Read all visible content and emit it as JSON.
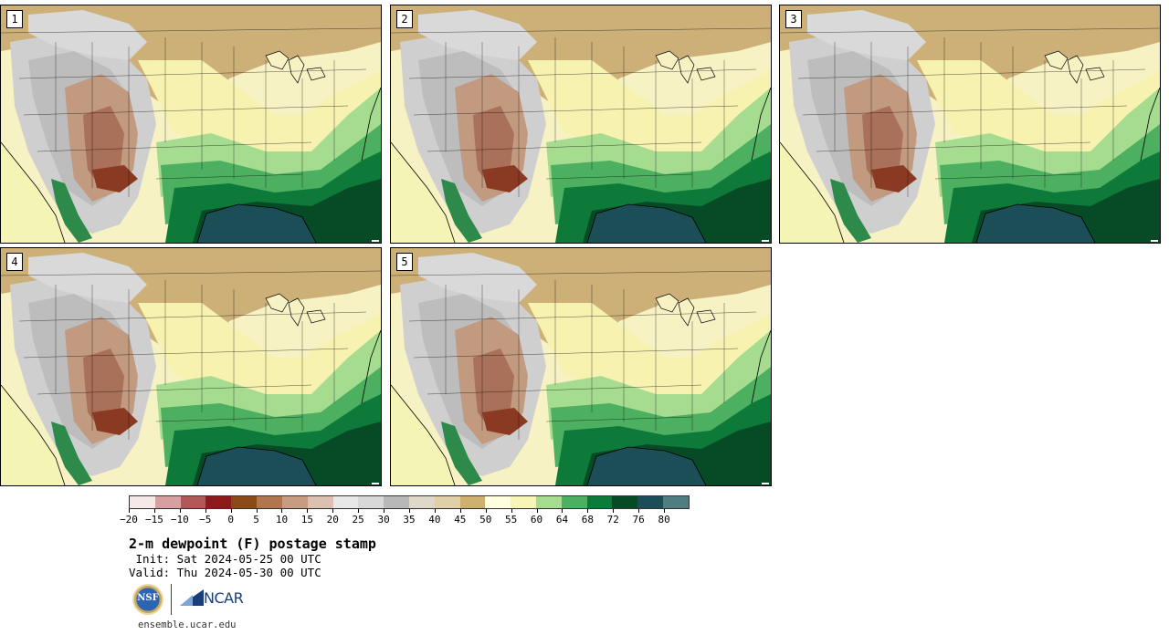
{
  "stamps": [
    {
      "label": "1"
    },
    {
      "label": "2"
    },
    {
      "label": "3"
    },
    {
      "label": "4"
    },
    {
      "label": "5"
    }
  ],
  "colorbar": {
    "colors": [
      "#f5e8e8",
      "#d6a0a0",
      "#b05858",
      "#8c1a1a",
      "#8a4a18",
      "#b07650",
      "#c89c80",
      "#dcc0b0",
      "#e8e8e8",
      "#d8d8d8",
      "#b8b8b8",
      "#ddd8c8",
      "#e0d0a8",
      "#cdb070",
      "#ffffe0",
      "#f6f6b8",
      "#a6dc90",
      "#4cb060",
      "#0e7a3a",
      "#064a26",
      "#1c4e58",
      "#4f7e80"
    ],
    "tick_labels": [
      "−20",
      "−15",
      "−10",
      "−5",
      "0",
      "5",
      "10",
      "15",
      "20",
      "25",
      "30",
      "35",
      "40",
      "45",
      "50",
      "55",
      "60",
      "64",
      "68",
      "72",
      "76",
      "80"
    ]
  },
  "title": "2-m dewpoint (F) postage stamp",
  "init": " Init: Sat 2024-05-25 00 UTC",
  "valid": "Valid: Thu 2024-05-30 00 UTC",
  "logo": {
    "nsf": "NSF",
    "ncar": "NCAR"
  },
  "site": "ensemble.ucar.edu"
}
